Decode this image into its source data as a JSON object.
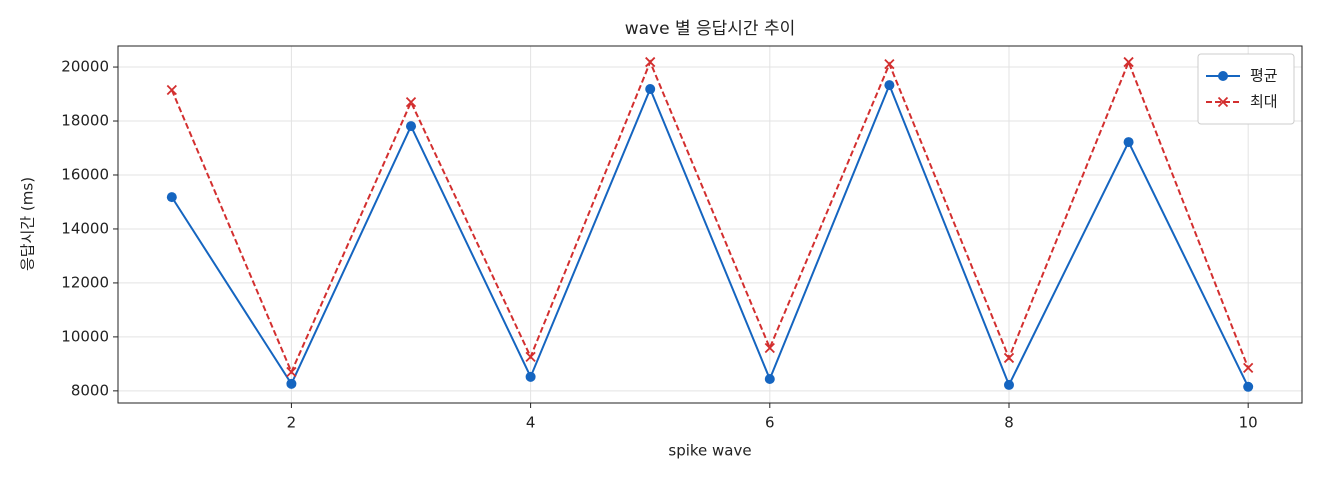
{
  "chart_data": {
    "type": "line",
    "title": "wave 별 응답시간 추이",
    "xlabel": "spike wave",
    "ylabel": "응답시간 (ms)",
    "x": [
      1,
      2,
      3,
      4,
      5,
      6,
      7,
      8,
      9,
      10
    ],
    "series": [
      {
        "name": "평균",
        "color": "#1565c0",
        "marker": "o",
        "linestyle": "solid",
        "values": [
          15180,
          8260,
          17810,
          8520,
          19185,
          8440,
          19330,
          8220,
          17220,
          8150
        ]
      },
      {
        "name": "최대",
        "color": "#d32f2f",
        "marker": "x",
        "linestyle": "dashed",
        "values": [
          19150,
          8700,
          18700,
          9260,
          20185,
          9590,
          20110,
          9220,
          20185,
          8850
        ]
      }
    ],
    "xlim": [
      0.55,
      10.45
    ],
    "xticks": [
      2,
      4,
      6,
      8,
      10
    ],
    "ylim": [
      7550,
      20780
    ],
    "yticks": [
      8000,
      10000,
      12000,
      14000,
      16000,
      18000,
      20000
    ],
    "grid": true,
    "legend": "upper right"
  }
}
